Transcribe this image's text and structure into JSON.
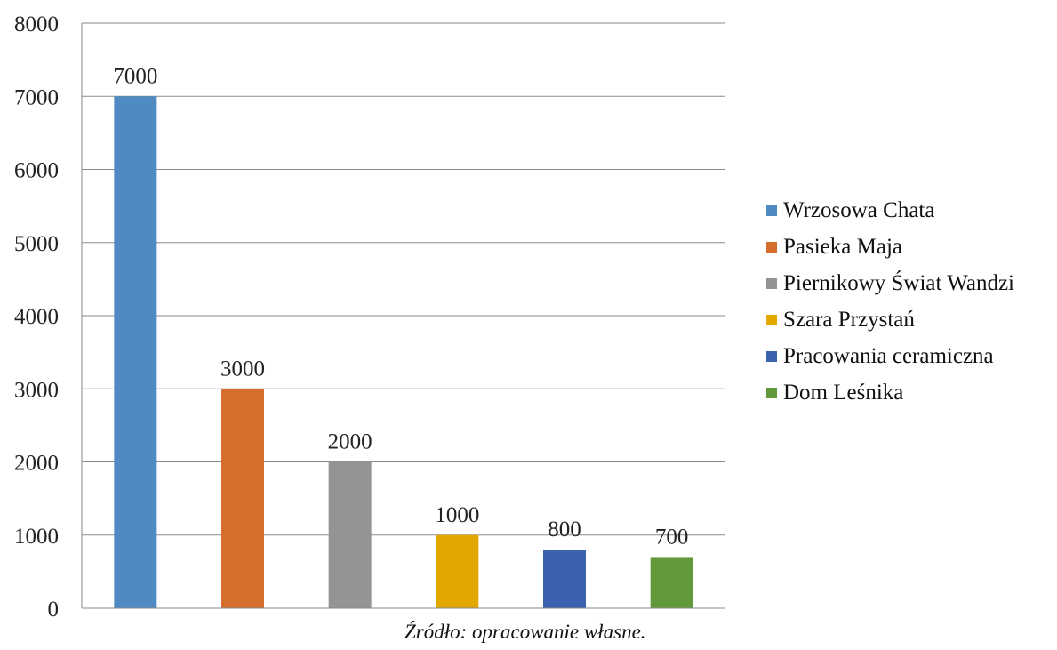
{
  "chart_data": {
    "type": "bar",
    "categories": [
      "Wrzosowa Chata",
      "Pasieka Maja",
      "Piernikowy Świat Wandzi",
      "Szara Przystań",
      "Pracowania ceramiczna",
      "Dom Leśnika"
    ],
    "values": [
      7000,
      3000,
      2000,
      1000,
      800,
      700
    ],
    "data_labels": [
      "7000",
      "3000",
      "2000",
      "1000",
      "800",
      "700"
    ],
    "colors": [
      "#4f8bc2",
      "#d56e2c",
      "#949494",
      "#e3a800",
      "#3a62ae",
      "#62993a"
    ],
    "ylim": [
      0,
      8000
    ],
    "yticks": [
      "0",
      "1000",
      "2000",
      "3000",
      "4000",
      "5000",
      "6000",
      "7000",
      "8000"
    ],
    "grid": true,
    "legend_position": "right",
    "title": "",
    "xlabel": "",
    "ylabel": ""
  },
  "source_note": "Źródło: opracowanie własne."
}
